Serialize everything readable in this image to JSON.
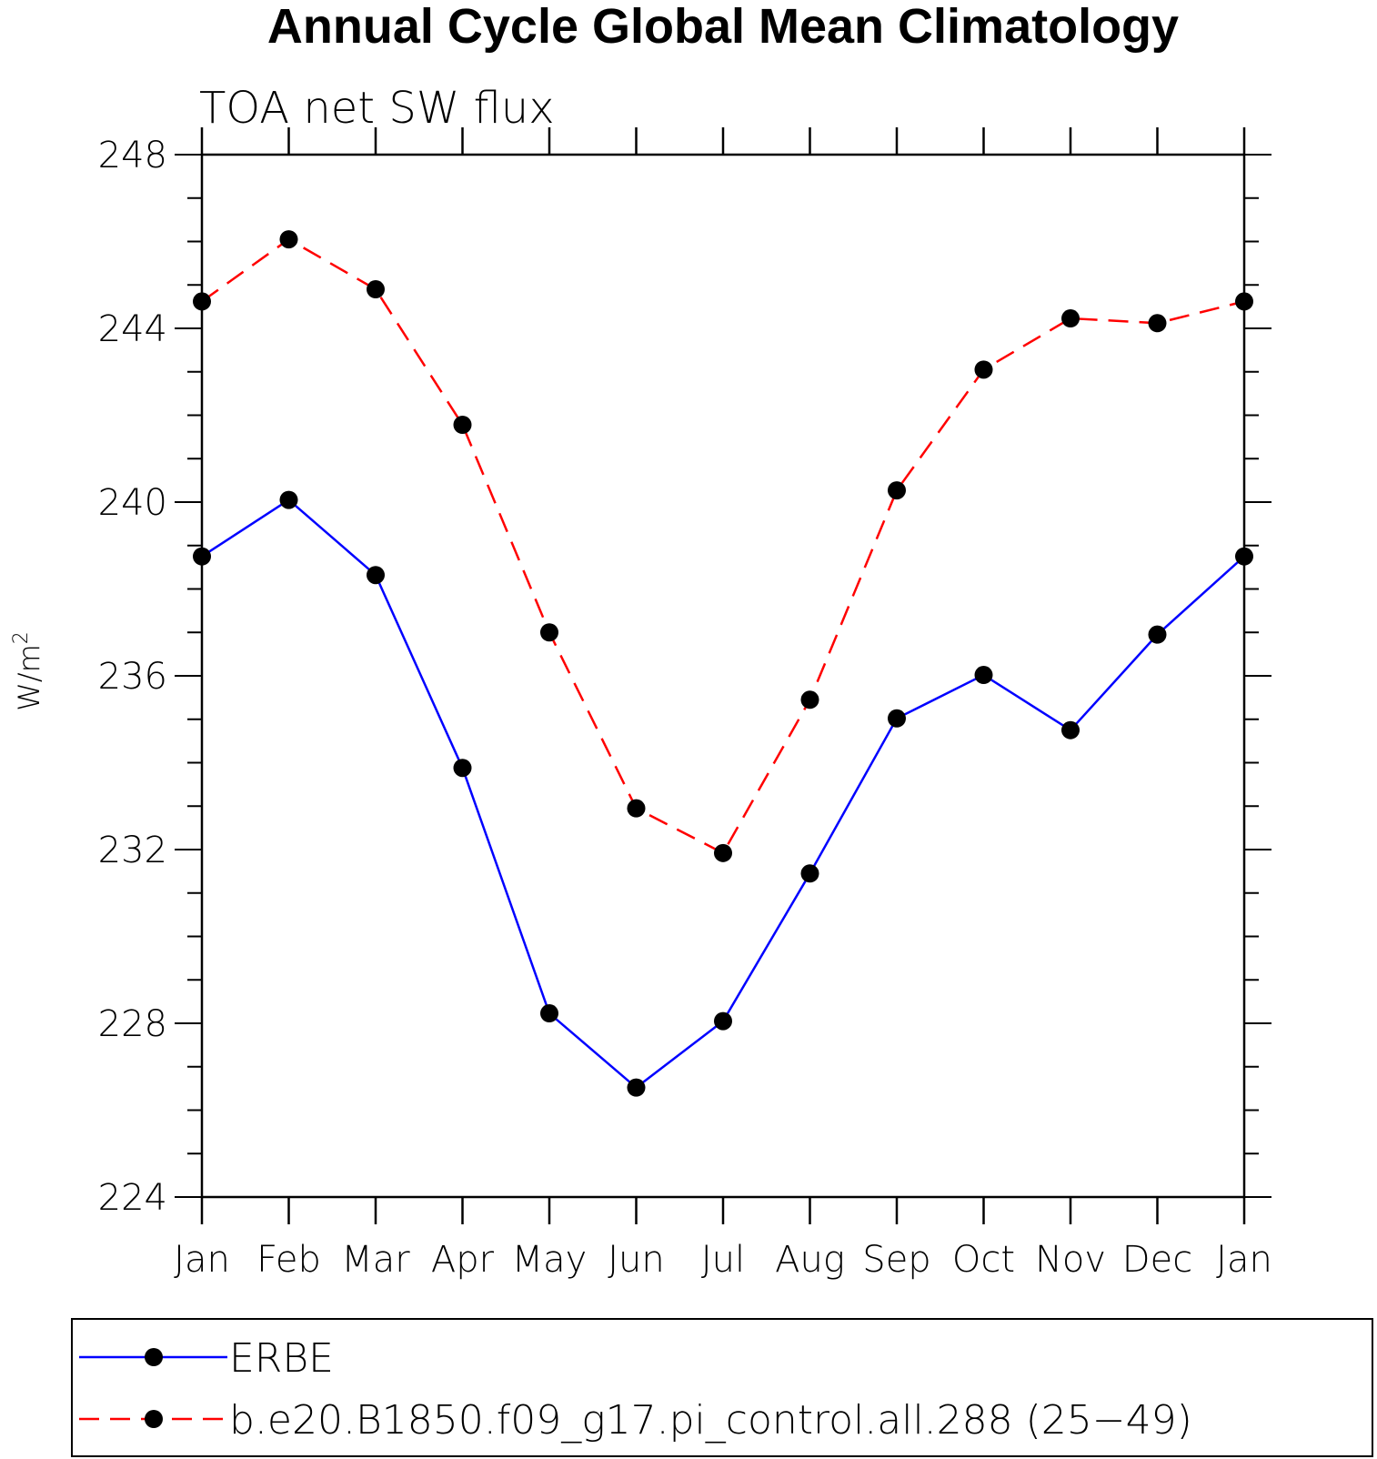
{
  "chart_data": {
    "type": "line",
    "title": "Annual Cycle Global Mean Climatology",
    "subtitle": "TOA net SW flux",
    "xlabel": "",
    "ylabel": "W/m",
    "ylabel_superscript": "2",
    "categories": [
      "Jan",
      "Feb",
      "Mar",
      "Apr",
      "May",
      "Jun",
      "Jul",
      "Aug",
      "Sep",
      "Oct",
      "Nov",
      "Dec",
      "Jan"
    ],
    "ylim": [
      224,
      248
    ],
    "y_major_ticks": [
      224,
      228,
      232,
      236,
      240,
      244,
      248
    ],
    "y_minor_step": 1,
    "y_tick_labels": [
      "224",
      "228",
      "232",
      "236",
      "240",
      "244",
      "248"
    ],
    "series": [
      {
        "name": "ERBE",
        "color": "#0000ff",
        "line_style": "solid",
        "marker": "filled-circle",
        "values": [
          238.75,
          240.05,
          238.32,
          233.88,
          228.23,
          226.52,
          228.05,
          231.45,
          235.02,
          236.02,
          234.75,
          236.95,
          238.75
        ]
      },
      {
        "name": "b.e20.B1850.f09_g17.pi_control.all.288 (25−49)",
        "color": "#ff0000",
        "line_style": "dashed",
        "marker": "filled-circle",
        "values": [
          244.62,
          246.05,
          244.9,
          241.78,
          237.0,
          232.95,
          231.92,
          235.45,
          240.27,
          243.05,
          244.23,
          244.12,
          244.62
        ]
      }
    ],
    "marker_color": "#000000",
    "legend_position": "bottom"
  }
}
